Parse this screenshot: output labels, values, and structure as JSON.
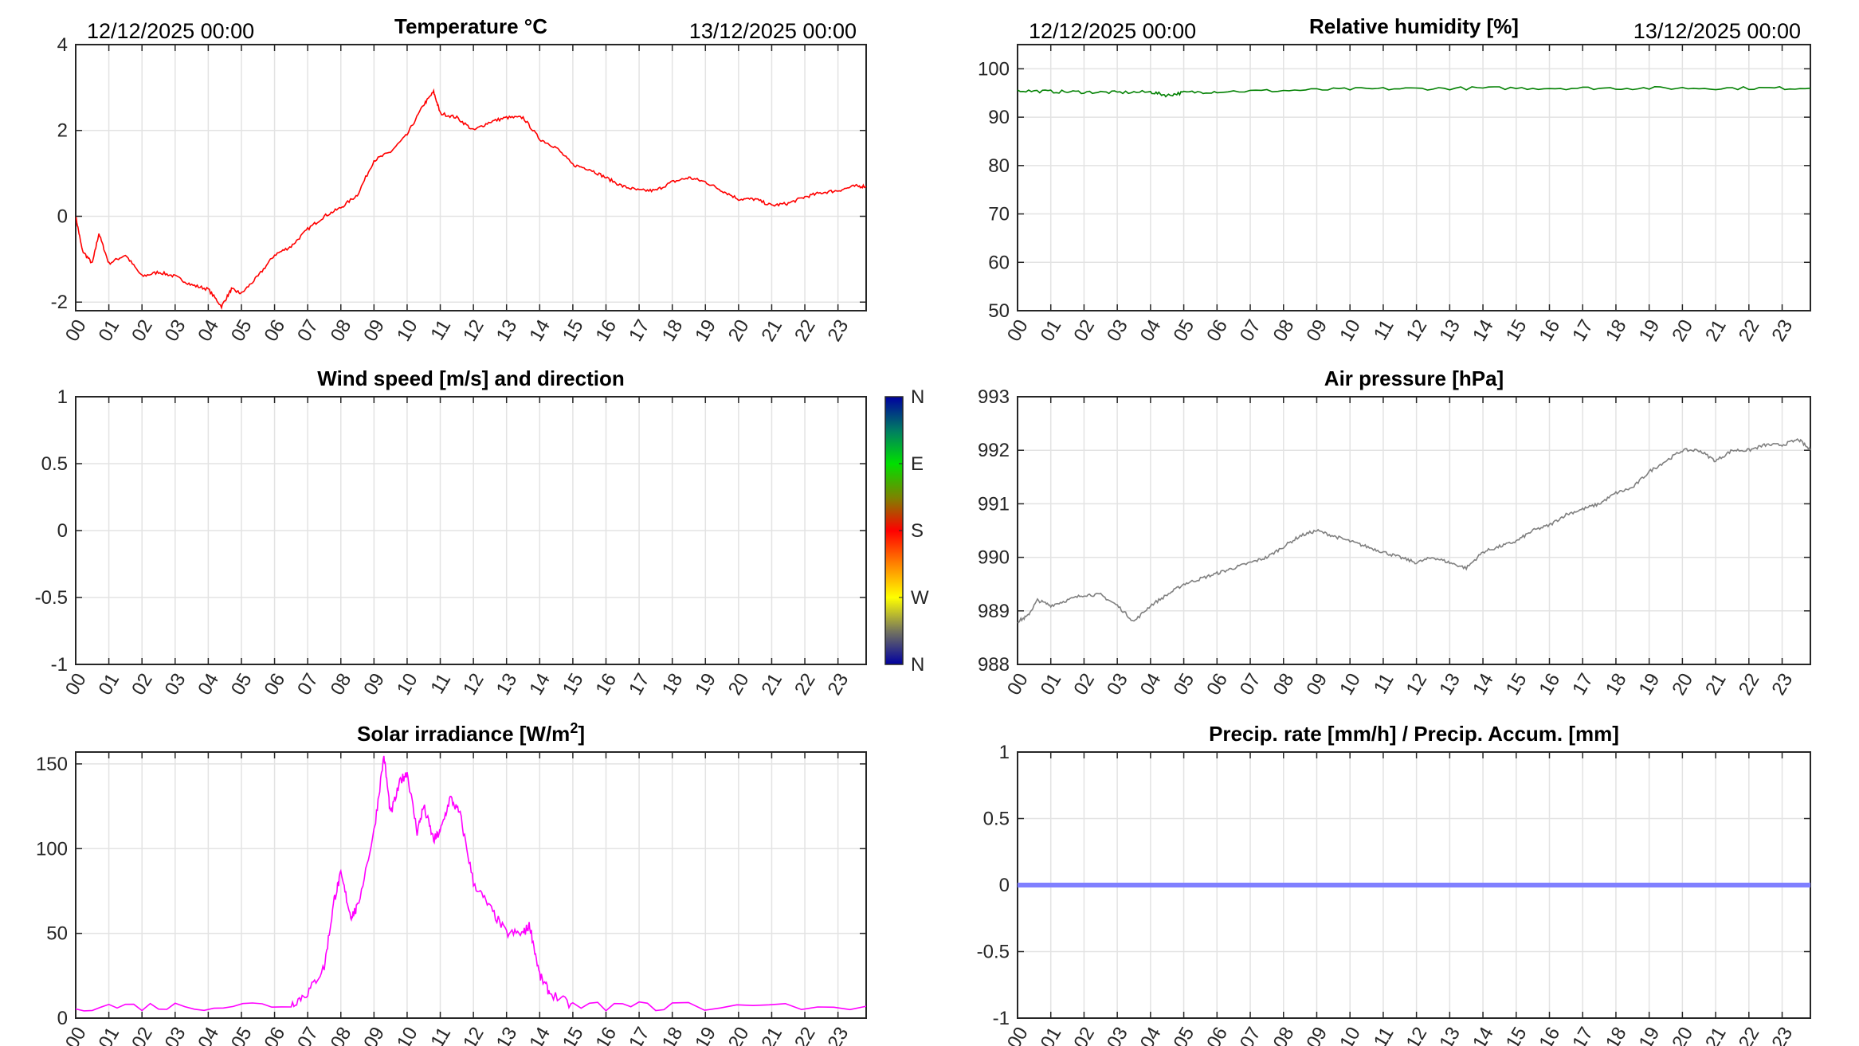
{
  "chart_data": [
    {
      "id": "temperature",
      "type": "line",
      "title": "Temperature °C",
      "date_left": "12/12/2025 00:00",
      "date_right": "13/12/2025 00:00",
      "color": "#ff0000",
      "ylim": [
        -2.2,
        4
      ],
      "yticks": [
        "-2",
        "0",
        "2",
        "4"
      ],
      "ytick_values": [
        -2,
        0,
        2,
        4
      ],
      "x": [
        0,
        0.2,
        0.5,
        0.7,
        1,
        1.5,
        2,
        2.5,
        3,
        3.5,
        4,
        4.4,
        4.7,
        5,
        5.5,
        6,
        6.5,
        7,
        7.5,
        8,
        8.5,
        9,
        9.5,
        10,
        10.5,
        10.8,
        11,
        11.5,
        12,
        12.5,
        13,
        13.5,
        14,
        14.5,
        15,
        15.5,
        16,
        16.5,
        17,
        17.5,
        18,
        18.5,
        19,
        19.5,
        20,
        20.5,
        21,
        21.5,
        22,
        22.5,
        23,
        23.5,
        23.85
      ],
      "y": [
        0,
        -0.8,
        -1.1,
        -0.4,
        -1.1,
        -0.9,
        -1.4,
        -1.3,
        -1.4,
        -1.6,
        -1.7,
        -2.1,
        -1.7,
        -1.8,
        -1.4,
        -0.9,
        -0.7,
        -0.3,
        0,
        0.2,
        0.5,
        1.3,
        1.5,
        1.9,
        2.6,
        2.9,
        2.4,
        2.3,
        2.0,
        2.2,
        2.3,
        2.3,
        1.8,
        1.6,
        1.2,
        1.1,
        0.9,
        0.7,
        0.6,
        0.6,
        0.8,
        0.9,
        0.8,
        0.6,
        0.4,
        0.4,
        0.25,
        0.3,
        0.45,
        0.55,
        0.6,
        0.7,
        0.7
      ]
    },
    {
      "id": "humidity",
      "type": "line",
      "title": "Relative humidity [%]",
      "date_left": "12/12/2025 00:00",
      "date_right": "13/12/2025 00:00",
      "color": "#008000",
      "ylim": [
        50,
        105
      ],
      "yticks": [
        "50",
        "60",
        "70",
        "80",
        "90",
        "100"
      ],
      "ytick_values": [
        50,
        60,
        70,
        80,
        90,
        100
      ],
      "x": [
        0,
        1,
        2,
        3,
        4,
        4.5,
        5,
        6,
        8,
        10,
        12,
        14,
        16,
        18,
        20,
        22,
        23.85
      ],
      "y": [
        95.5,
        95.3,
        95.2,
        95.1,
        95.2,
        94.5,
        95.1,
        95.3,
        95.5,
        95.8,
        95.9,
        96,
        96,
        96,
        96,
        96,
        96
      ]
    },
    {
      "id": "wind",
      "type": "line",
      "title": "Wind speed [m/s] and direction",
      "ylim": [
        -1,
        1
      ],
      "yticks": [
        "-1",
        "-0.5",
        "0",
        "0.5",
        "1"
      ],
      "ytick_values": [
        -1,
        -0.5,
        0,
        0.5,
        1
      ],
      "x": [],
      "y": [],
      "colorbar": {
        "labels": [
          "N",
          "W",
          "S",
          "E",
          "N"
        ]
      }
    },
    {
      "id": "pressure",
      "type": "line",
      "title": "Air pressure [hPa]",
      "color": "#808080",
      "ylim": [
        988,
        993
      ],
      "yticks": [
        "988",
        "989",
        "990",
        "991",
        "992",
        "993"
      ],
      "ytick_values": [
        988,
        989,
        990,
        991,
        992,
        993
      ],
      "x": [
        0,
        0.3,
        0.6,
        1,
        1.5,
        2,
        2.5,
        3,
        3.5,
        4,
        4.5,
        5,
        5.5,
        6,
        6.5,
        7,
        7.5,
        8,
        8.5,
        9,
        9.5,
        10,
        10.5,
        11,
        11.5,
        12,
        12.5,
        13,
        13.5,
        14,
        14.5,
        15,
        15.5,
        16,
        16.5,
        17,
        17.5,
        18,
        18.5,
        19,
        19.5,
        20,
        20.5,
        21,
        21.5,
        22,
        22.5,
        23,
        23.5,
        23.85
      ],
      "y": [
        988.8,
        988.9,
        989.2,
        989.1,
        989.2,
        989.3,
        989.3,
        989.1,
        988.8,
        989.1,
        989.3,
        989.5,
        989.6,
        989.7,
        989.8,
        989.9,
        990.0,
        990.2,
        990.4,
        990.5,
        990.4,
        990.3,
        990.2,
        990.1,
        990.0,
        989.9,
        990.0,
        989.9,
        989.8,
        990.1,
        990.2,
        990.3,
        990.5,
        990.6,
        990.8,
        990.9,
        991.0,
        991.2,
        991.3,
        991.6,
        991.8,
        992.0,
        992.0,
        991.8,
        992.0,
        992.0,
        992.1,
        992.1,
        992.2,
        992.0
      ]
    },
    {
      "id": "solar",
      "type": "line",
      "title": "Solar irradiance [W/m",
      "title_sup": "2",
      "title_end": "]",
      "color": "#ff00ff",
      "ylim": [
        0,
        157
      ],
      "yticks": [
        "0",
        "50",
        "100",
        "150"
      ],
      "ytick_values": [
        0,
        50,
        100,
        150
      ],
      "x": [
        0,
        3,
        6.5,
        7,
        7.5,
        7.8,
        8,
        8.3,
        8.5,
        9,
        9.3,
        9.5,
        9.8,
        10,
        10.3,
        10.5,
        10.8,
        11,
        11.3,
        11.6,
        12,
        12.5,
        13,
        13.5,
        13.7,
        14,
        14.3,
        15,
        18,
        23.85
      ],
      "y": [
        7,
        7,
        8,
        15,
        30,
        70,
        85,
        60,
        65,
        110,
        155,
        120,
        140,
        145,
        110,
        125,
        105,
        110,
        130,
        120,
        80,
        65,
        50,
        50,
        55,
        25,
        15,
        7,
        7,
        7
      ]
    },
    {
      "id": "precip",
      "type": "line",
      "title": "Precip. rate [mm/h] / Precip. Accum. [mm]",
      "color": "#8080ff",
      "ylim": [
        -1,
        1
      ],
      "yticks": [
        "-1",
        "-0.5",
        "0",
        "0.5",
        "1"
      ],
      "ytick_values": [
        -1,
        -0.5,
        0,
        0.5,
        1
      ],
      "x": [
        0,
        23.85
      ],
      "y": [
        0,
        0
      ]
    }
  ],
  "xticks": [
    "00",
    "01",
    "02",
    "03",
    "04",
    "05",
    "06",
    "07",
    "08",
    "09",
    "10",
    "11",
    "12",
    "13",
    "14",
    "15",
    "16",
    "17",
    "18",
    "19",
    "20",
    "21",
    "22",
    "23"
  ]
}
